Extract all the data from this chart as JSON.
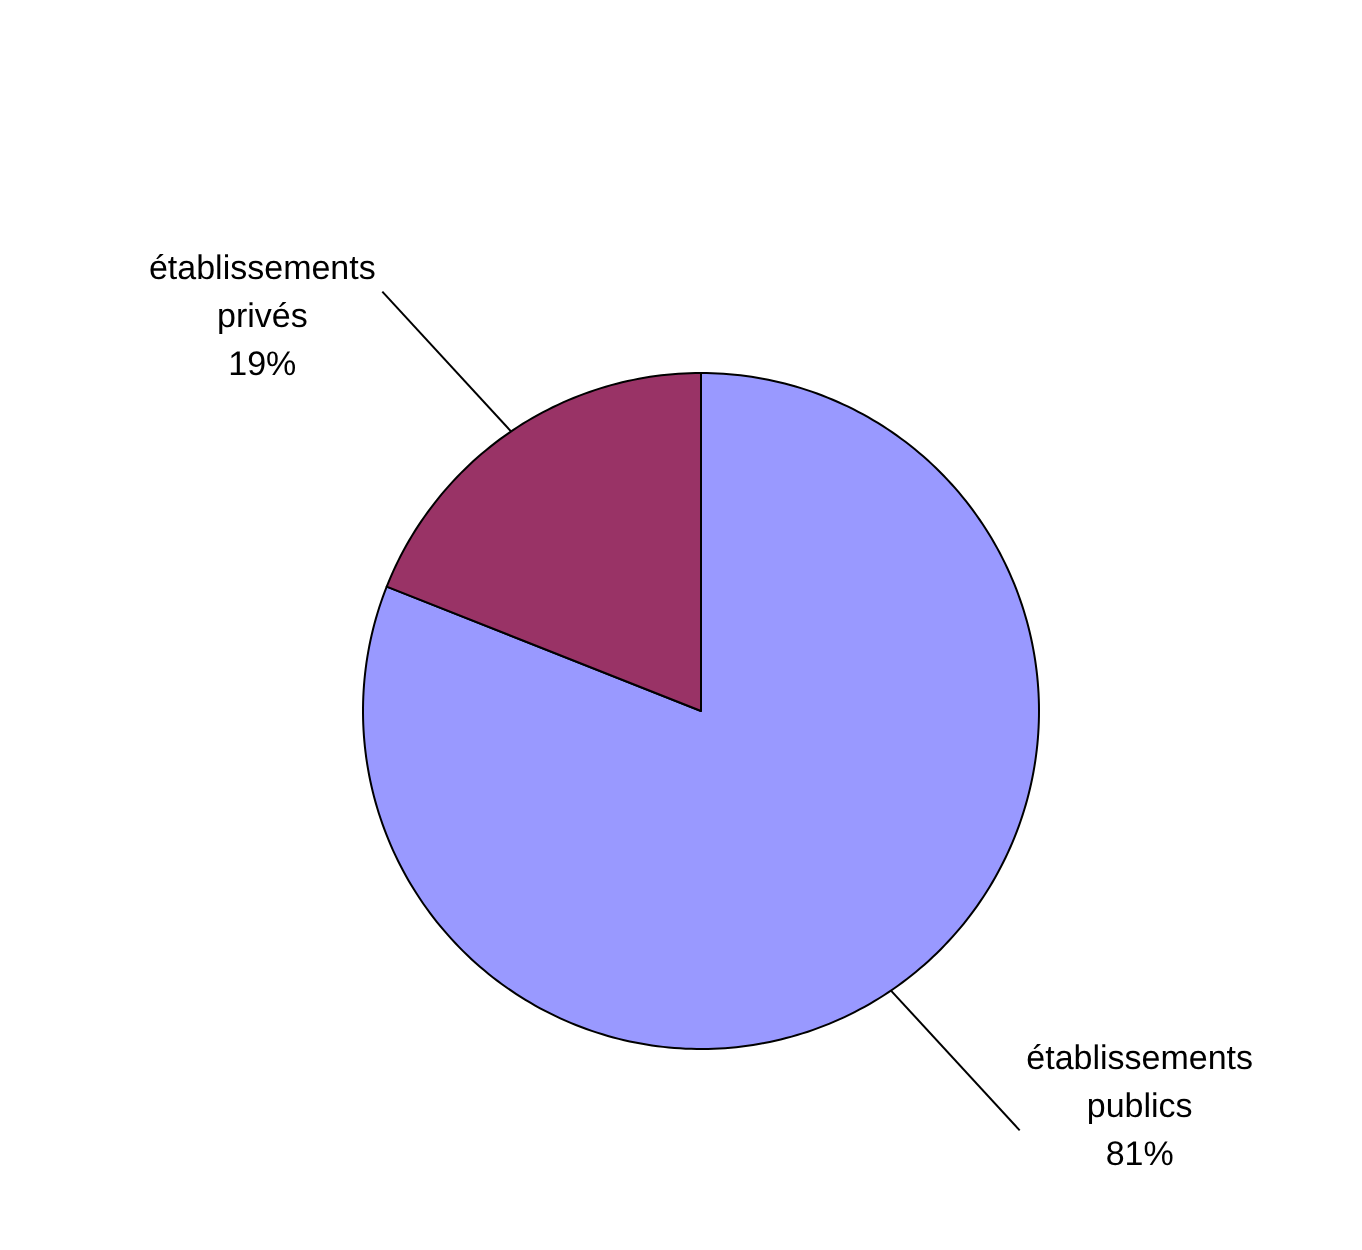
{
  "chart_data": {
    "type": "pie",
    "categories": [
      "établissements publics",
      "établissements privés"
    ],
    "values": [
      81,
      19
    ],
    "colors": [
      "#9999ff",
      "#993366"
    ],
    "value_labels": [
      "81%",
      "19%"
    ]
  }
}
